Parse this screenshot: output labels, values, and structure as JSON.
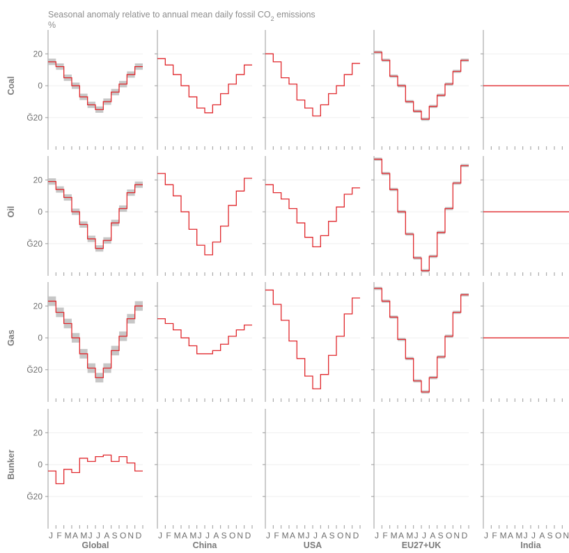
{
  "chart_data": {
    "type": "line",
    "style": "step",
    "title": "Seasonal anomaly relative to annual mean daily fossil CO₂ emissions",
    "ylabel": "%",
    "ylim": [
      -38,
      35
    ],
    "yticks": [
      20,
      0,
      -20
    ],
    "ytick_labels": [
      "20",
      "0",
      "Ğ20"
    ],
    "months": [
      "J",
      "F",
      "M",
      "A",
      "M",
      "J",
      "J",
      "A",
      "S",
      "O",
      "N",
      "D"
    ],
    "rows": [
      "Coal",
      "Oil",
      "Gas",
      "Bunker"
    ],
    "columns": [
      "Global",
      "China",
      "USA",
      "EU27+UK",
      "India"
    ],
    "line_color": "#e0262b",
    "band_color": "#bdbdbd",
    "panels": [
      {
        "row": "Coal",
        "col": "Global",
        "values": [
          15,
          12,
          5,
          0,
          -7,
          -12,
          -15,
          -10,
          -4,
          1,
          7,
          12
        ],
        "band": 2
      },
      {
        "row": "Coal",
        "col": "China",
        "values": [
          17,
          13,
          7,
          0,
          -7,
          -14,
          -17,
          -12,
          -5,
          1,
          7,
          13
        ],
        "band": 0
      },
      {
        "row": "Coal",
        "col": "USA",
        "values": [
          20,
          15,
          5,
          1,
          -9,
          -14,
          -19,
          -12,
          -5,
          0,
          7,
          14
        ],
        "band": 0
      },
      {
        "row": "Coal",
        "col": "EU27+UK",
        "values": [
          21,
          16,
          6,
          0,
          -10,
          -16,
          -21,
          -13,
          -6,
          1,
          9,
          16
        ],
        "band": 1
      },
      {
        "row": "Coal",
        "col": "India",
        "values": [
          0,
          0,
          0,
          0,
          0,
          0,
          0,
          0,
          0,
          0,
          0,
          0
        ],
        "band": 0
      },
      {
        "row": "Oil",
        "col": "Global",
        "values": [
          19,
          14,
          9,
          0,
          -8,
          -17,
          -23,
          -18,
          -7,
          2,
          12,
          17
        ],
        "band": 2
      },
      {
        "row": "Oil",
        "col": "China",
        "values": [
          24,
          17,
          10,
          0,
          -11,
          -21,
          -27,
          -19,
          -9,
          4,
          13,
          21
        ],
        "band": 0
      },
      {
        "row": "Oil",
        "col": "USA",
        "values": [
          17,
          12,
          8,
          2,
          -7,
          -16,
          -22,
          -15,
          -6,
          3,
          11,
          15
        ],
        "band": 0
      },
      {
        "row": "Oil",
        "col": "EU27+UK",
        "values": [
          33,
          24,
          14,
          0,
          -14,
          -29,
          -37,
          -28,
          -13,
          2,
          18,
          29
        ],
        "band": 1
      },
      {
        "row": "Oil",
        "col": "India",
        "values": [
          0,
          0,
          0,
          0,
          0,
          0,
          0,
          0,
          0,
          0,
          0,
          0
        ],
        "band": 0
      },
      {
        "row": "Gas",
        "col": "Global",
        "values": [
          23,
          16,
          9,
          0,
          -10,
          -19,
          -25,
          -19,
          -8,
          1,
          12,
          20
        ],
        "band": 3
      },
      {
        "row": "Gas",
        "col": "China",
        "values": [
          12,
          9,
          5,
          0,
          -5,
          -10,
          -10,
          -8,
          -4,
          1,
          5,
          8
        ],
        "band": 0
      },
      {
        "row": "Gas",
        "col": "USA",
        "values": [
          30,
          21,
          11,
          -2,
          -13,
          -24,
          -32,
          -23,
          -11,
          1,
          15,
          25
        ],
        "band": 0
      },
      {
        "row": "Gas",
        "col": "EU27+UK",
        "values": [
          31,
          23,
          13,
          -1,
          -13,
          -27,
          -34,
          -25,
          -12,
          1,
          16,
          27
        ],
        "band": 1
      },
      {
        "row": "Gas",
        "col": "India",
        "values": [
          0,
          0,
          0,
          0,
          0,
          0,
          0,
          0,
          0,
          0,
          0,
          0
        ],
        "band": 0
      },
      {
        "row": "Bunker",
        "col": "Global",
        "values": [
          -4,
          -12,
          -3,
          -5,
          4,
          2,
          5,
          6,
          2,
          5,
          1,
          -4
        ],
        "band": 0
      }
    ]
  }
}
